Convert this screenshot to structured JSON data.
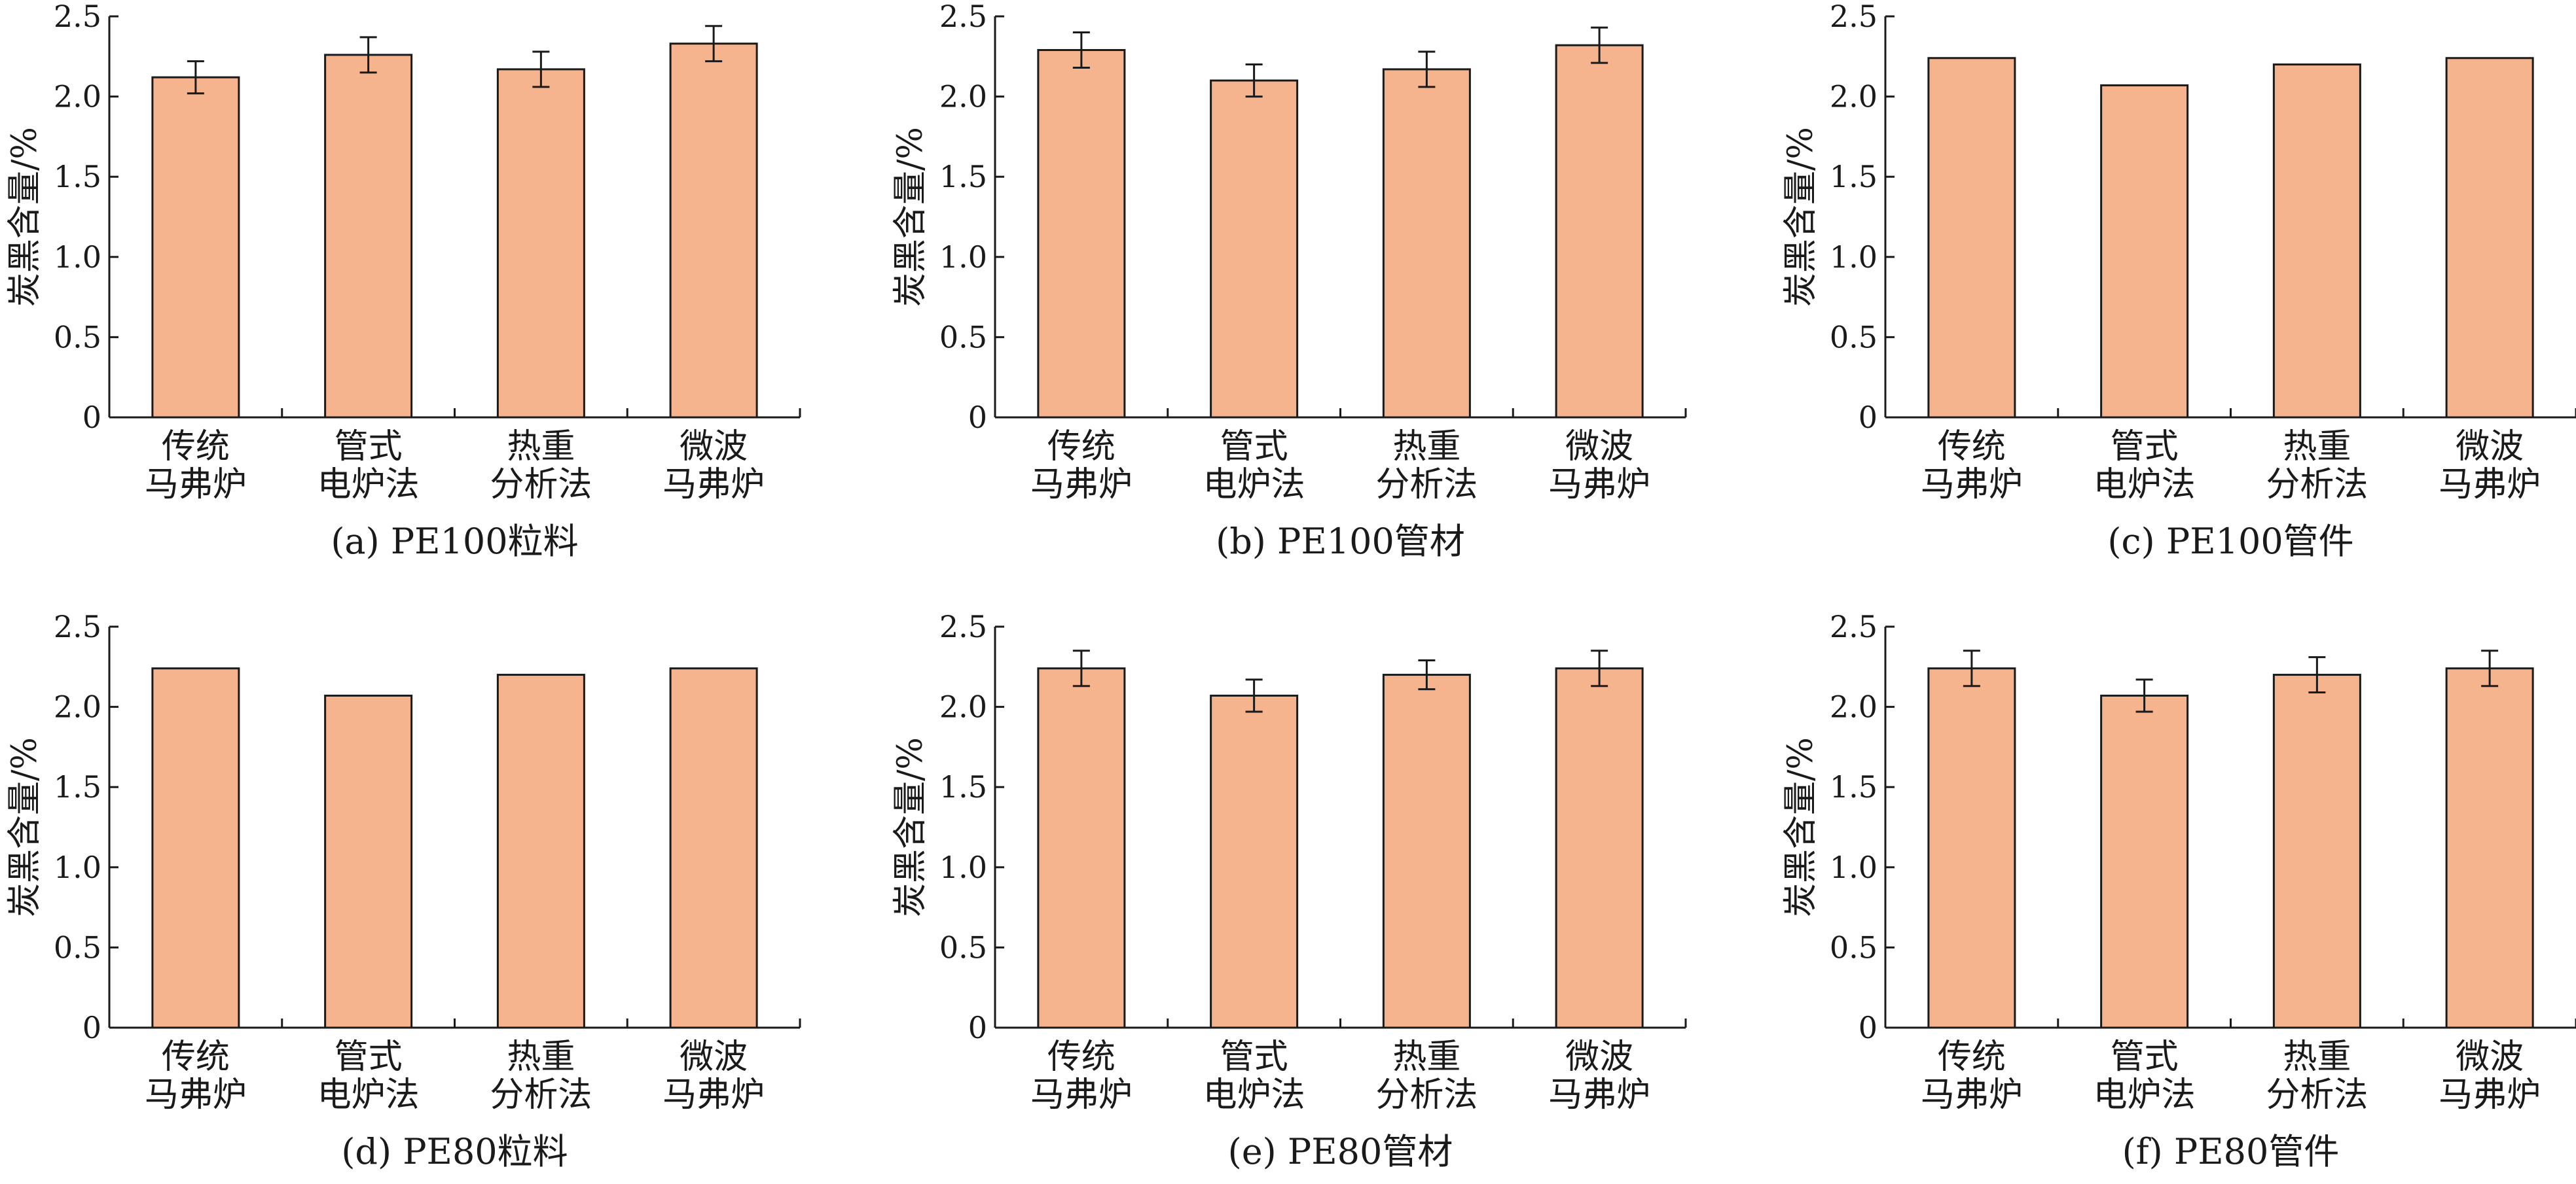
{
  "style": {
    "bar_fill": "#f5b48e",
    "stroke": "#1a1a1a",
    "background": "#ffffff"
  },
  "chart_data": [
    {
      "type": "bar",
      "caption": "(a) PE100粒料",
      "ylabel": "炭黑含量/%",
      "categories": [
        [
          "传统",
          "马弗炉"
        ],
        [
          "管式",
          "电炉法"
        ],
        [
          "热重",
          "分析法"
        ],
        [
          "微波",
          "马弗炉"
        ]
      ],
      "values": [
        2.12,
        2.26,
        2.17,
        2.33
      ],
      "errors": [
        0.1,
        0.11,
        0.11,
        0.11
      ],
      "ylim": [
        0,
        2.5
      ],
      "yticks": [
        "0",
        "0.5",
        "1.0",
        "1.5",
        "2.0",
        "2.5"
      ]
    },
    {
      "type": "bar",
      "caption": "(b) PE100管材",
      "ylabel": "炭黑含量/%",
      "categories": [
        [
          "传统",
          "马弗炉"
        ],
        [
          "管式",
          "电炉法"
        ],
        [
          "热重",
          "分析法"
        ],
        [
          "微波",
          "马弗炉"
        ]
      ],
      "values": [
        2.29,
        2.1,
        2.17,
        2.32
      ],
      "errors": [
        0.11,
        0.1,
        0.11,
        0.11
      ],
      "ylim": [
        0,
        2.5
      ],
      "yticks": [
        "0",
        "0.5",
        "1.0",
        "1.5",
        "2.0",
        "2.5"
      ]
    },
    {
      "type": "bar",
      "caption": "(c) PE100管件",
      "ylabel": "炭黑含量/%",
      "categories": [
        [
          "传统",
          "马弗炉"
        ],
        [
          "管式",
          "电炉法"
        ],
        [
          "热重",
          "分析法"
        ],
        [
          "微波",
          "马弗炉"
        ]
      ],
      "values": [
        2.24,
        2.07,
        2.2,
        2.24
      ],
      "errors": [],
      "ylim": [
        0,
        2.5
      ],
      "yticks": [
        "0",
        "0.5",
        "1.0",
        "1.5",
        "2.0",
        "2.5"
      ]
    },
    {
      "type": "bar",
      "caption": "(d) PE80粒料",
      "ylabel": "炭黑含量/%",
      "categories": [
        [
          "传统",
          "马弗炉"
        ],
        [
          "管式",
          "电炉法"
        ],
        [
          "热重",
          "分析法"
        ],
        [
          "微波",
          "马弗炉"
        ]
      ],
      "values": [
        2.24,
        2.07,
        2.2,
        2.24
      ],
      "errors": [],
      "ylim": [
        0,
        2.5
      ],
      "yticks": [
        "0",
        "0.5",
        "1.0",
        "1.5",
        "2.0",
        "2.5"
      ]
    },
    {
      "type": "bar",
      "caption": "(e) PE80管材",
      "ylabel": "炭黑含量/%",
      "categories": [
        [
          "传统",
          "马弗炉"
        ],
        [
          "管式",
          "电炉法"
        ],
        [
          "热重",
          "分析法"
        ],
        [
          "微波",
          "马弗炉"
        ]
      ],
      "values": [
        2.24,
        2.07,
        2.2,
        2.24
      ],
      "errors": [
        0.11,
        0.1,
        0.09,
        0.11
      ],
      "ylim": [
        0,
        2.5
      ],
      "yticks": [
        "0",
        "0.5",
        "1.0",
        "1.5",
        "2.0",
        "2.5"
      ]
    },
    {
      "type": "bar",
      "caption": "(f) PE80管件",
      "ylabel": "炭黑含量/%",
      "categories": [
        [
          "传统",
          "马弗炉"
        ],
        [
          "管式",
          "电炉法"
        ],
        [
          "热重",
          "分析法"
        ],
        [
          "微波",
          "马弗炉"
        ]
      ],
      "values": [
        2.24,
        2.07,
        2.2,
        2.24
      ],
      "errors": [
        0.11,
        0.1,
        0.11,
        0.11
      ],
      "ylim": [
        0,
        2.5
      ],
      "yticks": [
        "0",
        "0.5",
        "1.0",
        "1.5",
        "2.0",
        "2.5"
      ]
    }
  ]
}
